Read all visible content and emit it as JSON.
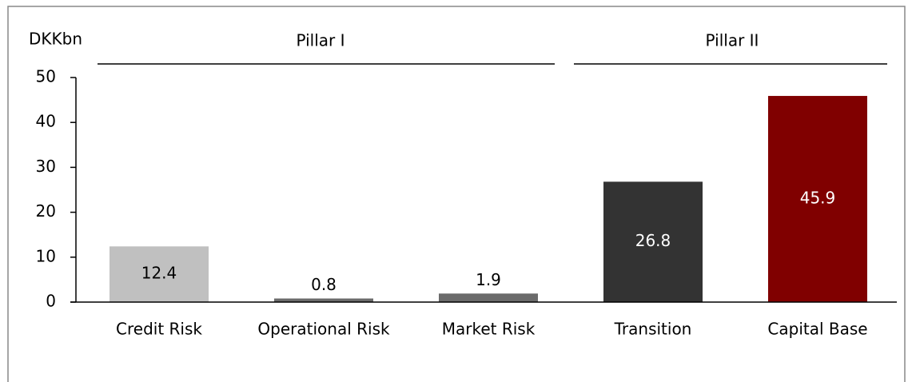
{
  "chart_data": {
    "type": "bar",
    "ylabel": "DKKbn",
    "categories": [
      "Credit Risk",
      "Operational Risk",
      "Market Risk",
      "Transition",
      "Capital Base"
    ],
    "values": [
      12.4,
      0.8,
      1.9,
      26.8,
      45.9
    ],
    "colors": [
      "#c0c0c0",
      "#6b6b6b",
      "#6b6b6b",
      "#333333",
      "#800000"
    ],
    "value_label_colors": [
      "#000000",
      "#000000",
      "#000000",
      "#ffffff",
      "#ffffff"
    ],
    "groups": [
      {
        "label": "Pillar I",
        "count": 3
      },
      {
        "label": "Pillar II",
        "count": 2
      }
    ],
    "ylim": [
      0,
      50
    ],
    "yticks": [
      0,
      10,
      20,
      30,
      40,
      50
    ],
    "grid": false
  }
}
